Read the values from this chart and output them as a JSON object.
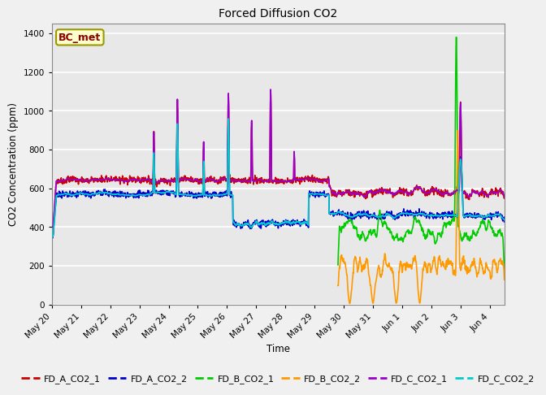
{
  "title": "Forced Diffusion CO2",
  "ylabel": "CO2 Concentration (ppm)",
  "xlabel": "Time",
  "annotation": "BC_met",
  "ylim": [
    0,
    1450
  ],
  "yticks": [
    0,
    200,
    400,
    600,
    800,
    1000,
    1200,
    1400
  ],
  "fig_bg_color": "#f0f0f0",
  "plot_bg_color": "#e8e8e8",
  "series": {
    "FD_A_CO2_1": {
      "color": "#cc0000",
      "lw": 1.2
    },
    "FD_A_CO2_2": {
      "color": "#0000cc",
      "lw": 1.2
    },
    "FD_B_CO2_1": {
      "color": "#00cc00",
      "lw": 1.2
    },
    "FD_B_CO2_2": {
      "color": "#ff9900",
      "lw": 1.2
    },
    "FD_C_CO2_1": {
      "color": "#9900cc",
      "lw": 1.2
    },
    "FD_C_CO2_2": {
      "color": "#00cccc",
      "lw": 1.2
    }
  },
  "legend": {
    "labels": [
      "FD_A_CO2_1",
      "FD_A_CO2_2",
      "FD_B_CO2_1",
      "FD_B_CO2_2",
      "FD_C_CO2_1",
      "FD_C_CO2_2"
    ],
    "colors": [
      "#cc0000",
      "#0000cc",
      "#00cc00",
      "#ff9900",
      "#9900cc",
      "#00cccc"
    ],
    "ncol": 6
  },
  "tick_labels": [
    "May 20",
    "May 21",
    "May 22",
    "May 23",
    "May 24",
    "May 25",
    "May 26",
    "May 27",
    "May 28",
    "May 29",
    "May 30",
    "May 31",
    "Jun 1",
    "Jun 2",
    "Jun 3",
    "Jun 4"
  ]
}
